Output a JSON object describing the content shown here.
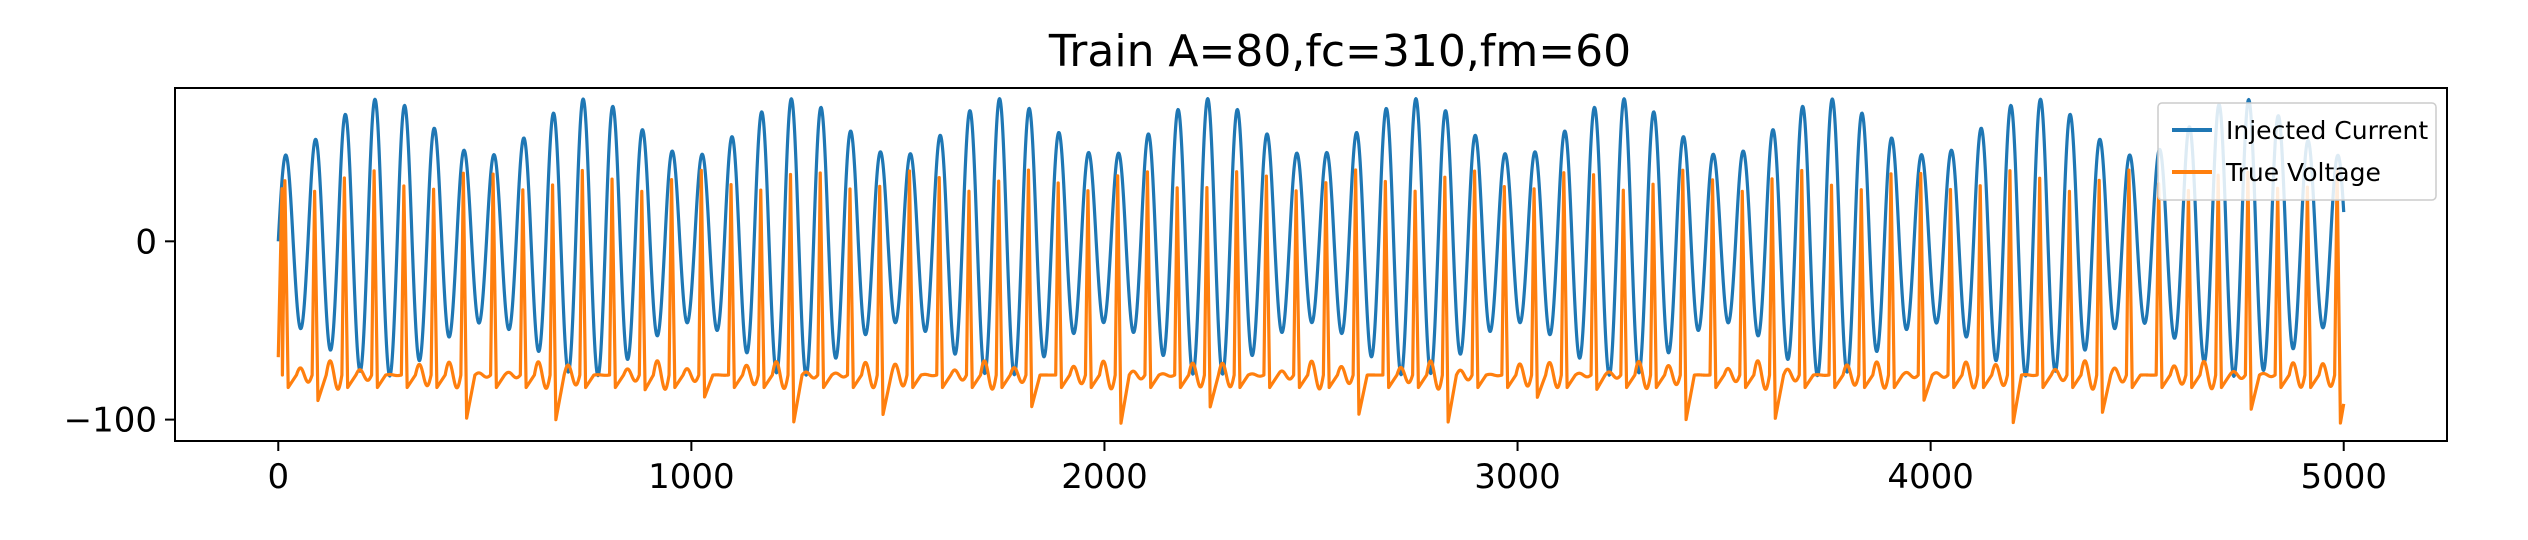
{
  "chart_data": {
    "type": "line",
    "title": "Train A=80,fc=310,fm=60",
    "xlabel": "",
    "ylabel": "",
    "xlim": [
      -250,
      5250
    ],
    "ylim": [
      -112,
      86
    ],
    "xticks": [
      0,
      1000,
      2000,
      3000,
      4000,
      5000
    ],
    "xtick_labels": [
      "0",
      "1000",
      "2000",
      "3000",
      "4000",
      "5000"
    ],
    "yticks": [
      0,
      -100
    ],
    "ytick_labels": [
      "0",
      "−100"
    ],
    "grid": false,
    "legend_position": "upper right",
    "x_range": [
      0,
      5000
    ],
    "series": [
      {
        "name": "Injected Current",
        "color": "#1f77b4",
        "signal": "amplitude-modulated sinusoid",
        "amplitude": 80,
        "carrier_freq": 310,
        "mod_freq": 60,
        "range": [
          -78,
          80
        ]
      },
      {
        "name": "True Voltage",
        "color": "#ff7f0e",
        "signal": "spiking membrane voltage",
        "resting": -75,
        "spike_peak": 40,
        "min": -105,
        "range": [
          -105,
          40
        ]
      }
    ]
  }
}
